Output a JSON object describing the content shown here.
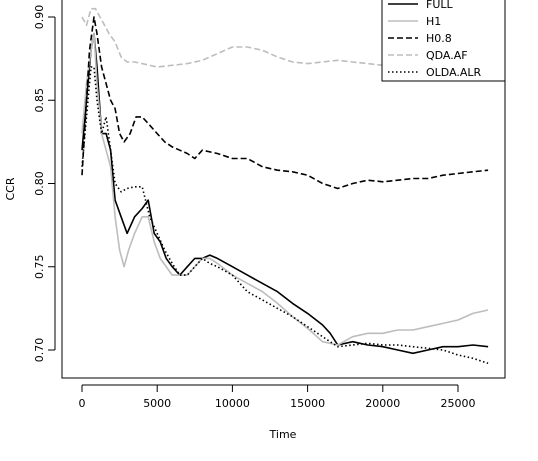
{
  "chart_data": {
    "type": "line",
    "title": "",
    "xlabel": "Time",
    "ylabel": "CCR",
    "xlim": [
      -1000,
      28000
    ],
    "ylim": [
      0.69,
      0.91
    ],
    "x_ticks": [
      0,
      5000,
      10000,
      15000,
      20000,
      25000
    ],
    "x_tick_labels": [
      "0",
      "5000",
      "10000",
      "15000",
      "20000",
      "25000"
    ],
    "y_ticks": [
      0.7,
      0.75,
      0.8,
      0.85,
      0.9
    ],
    "y_tick_labels": [
      "0.70",
      "0.75",
      "0.80",
      "0.85",
      "0.90"
    ],
    "legend_position": "top-right",
    "series": [
      {
        "name": "FULL",
        "color": "#000000",
        "dash": "solid",
        "x": [
          0,
          300,
          600,
          800,
          1000,
          1300,
          1600,
          1900,
          2200,
          2600,
          3000,
          3500,
          4000,
          4400,
          4800,
          5200,
          5600,
          6000,
          6500,
          7000,
          7500,
          8000,
          8500,
          9000,
          10000,
          11000,
          12000,
          13000,
          14000,
          15000,
          16000,
          16500,
          17000,
          18000,
          19000,
          20000,
          21000,
          22000,
          23000,
          24000,
          25000,
          26000,
          27000
        ],
        "values": [
          0.82,
          0.85,
          0.88,
          0.89,
          0.87,
          0.83,
          0.83,
          0.82,
          0.79,
          0.78,
          0.77,
          0.78,
          0.785,
          0.79,
          0.77,
          0.765,
          0.755,
          0.75,
          0.745,
          0.75,
          0.755,
          0.755,
          0.757,
          0.755,
          0.75,
          0.745,
          0.74,
          0.735,
          0.728,
          0.722,
          0.715,
          0.71,
          0.703,
          0.705,
          0.703,
          0.702,
          0.7,
          0.698,
          0.7,
          0.702,
          0.702,
          0.703,
          0.702
        ]
      },
      {
        "name": "H1",
        "color": "#bdbdbd",
        "dash": "solid",
        "x": [
          0,
          300,
          600,
          800,
          1000,
          1300,
          1600,
          1900,
          2200,
          2500,
          2800,
          3100,
          3500,
          4000,
          4400,
          4800,
          5200,
          5600,
          6000,
          6500,
          7000,
          7500,
          8000,
          8500,
          9000,
          10000,
          11000,
          12000,
          13000,
          14000,
          15000,
          16000,
          17000,
          18000,
          19000,
          20000,
          21000,
          22000,
          23000,
          24000,
          25000,
          26000,
          27000
        ],
        "values": [
          0.83,
          0.86,
          0.88,
          0.89,
          0.86,
          0.83,
          0.82,
          0.81,
          0.78,
          0.76,
          0.75,
          0.76,
          0.77,
          0.78,
          0.78,
          0.765,
          0.755,
          0.75,
          0.745,
          0.745,
          0.745,
          0.75,
          0.755,
          0.755,
          0.752,
          0.745,
          0.74,
          0.735,
          0.728,
          0.72,
          0.713,
          0.705,
          0.703,
          0.708,
          0.71,
          0.71,
          0.712,
          0.712,
          0.714,
          0.716,
          0.718,
          0.722,
          0.724
        ]
      },
      {
        "name": "H0.8",
        "color": "#000000",
        "dash": "dashed",
        "x": [
          0,
          300,
          500,
          800,
          1000,
          1300,
          1600,
          1900,
          2200,
          2500,
          2800,
          3200,
          3600,
          4000,
          4500,
          5000,
          5500,
          6000,
          6500,
          7000,
          7500,
          8000,
          9000,
          10000,
          11000,
          12000,
          13000,
          14000,
          15000,
          16000,
          17000,
          18000,
          19000,
          20000,
          21000,
          22000,
          23000,
          24000,
          25000,
          26000,
          27000
        ],
        "values": [
          0.805,
          0.85,
          0.88,
          0.9,
          0.89,
          0.87,
          0.86,
          0.85,
          0.845,
          0.83,
          0.825,
          0.83,
          0.84,
          0.84,
          0.835,
          0.83,
          0.825,
          0.822,
          0.82,
          0.818,
          0.815,
          0.82,
          0.818,
          0.815,
          0.815,
          0.81,
          0.808,
          0.807,
          0.805,
          0.8,
          0.797,
          0.8,
          0.802,
          0.801,
          0.802,
          0.803,
          0.803,
          0.805,
          0.806,
          0.807,
          0.808
        ]
      },
      {
        "name": "QDA.AF",
        "color": "#bdbdbd",
        "dash": "dashed",
        "x": [
          0,
          300,
          600,
          900,
          1200,
          1500,
          1800,
          2200,
          2600,
          3000,
          3500,
          4000,
          5000,
          6000,
          7000,
          8000,
          9000,
          10000,
          11000,
          12000,
          13000,
          14000,
          15000,
          16000,
          17000,
          18000,
          19000,
          20000
        ],
        "values": [
          0.9,
          0.895,
          0.905,
          0.905,
          0.9,
          0.895,
          0.89,
          0.885,
          0.876,
          0.873,
          0.873,
          0.872,
          0.87,
          0.871,
          0.872,
          0.874,
          0.878,
          0.882,
          0.882,
          0.88,
          0.876,
          0.873,
          0.872,
          0.873,
          0.874,
          0.873,
          0.872,
          0.871
        ]
      },
      {
        "name": "OLDA.ALR",
        "color": "#000000",
        "dash": "dotted",
        "x": [
          0,
          300,
          600,
          800,
          1000,
          1300,
          1600,
          1900,
          2200,
          2600,
          3000,
          3500,
          4000,
          4500,
          5000,
          5500,
          6000,
          6500,
          7000,
          7500,
          8000,
          8500,
          9000,
          10000,
          11000,
          12000,
          13000,
          14000,
          15000,
          16000,
          17000,
          18000,
          19000,
          20000,
          21000,
          22000,
          23000,
          24000,
          25000,
          26000,
          27000
        ],
        "values": [
          0.81,
          0.84,
          0.87,
          0.87,
          0.85,
          0.83,
          0.84,
          0.82,
          0.8,
          0.795,
          0.797,
          0.798,
          0.798,
          0.78,
          0.77,
          0.76,
          0.752,
          0.745,
          0.745,
          0.75,
          0.755,
          0.752,
          0.75,
          0.745,
          0.735,
          0.73,
          0.725,
          0.72,
          0.714,
          0.708,
          0.702,
          0.703,
          0.704,
          0.703,
          0.703,
          0.702,
          0.701,
          0.7,
          0.697,
          0.695,
          0.692
        ]
      }
    ]
  }
}
